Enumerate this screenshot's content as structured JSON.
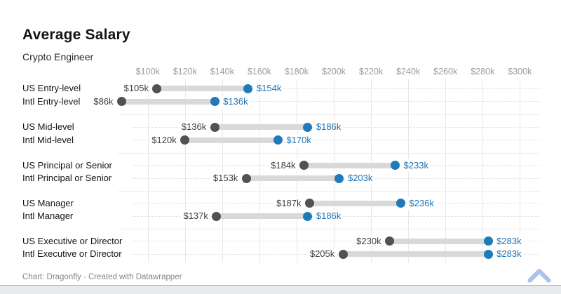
{
  "chart_data": {
    "type": "dumbbell",
    "title": "Average Salary",
    "subtitle": "Crypto Engineer",
    "footer": "Chart: Dragonfly · Created with Datawrapper",
    "x_axis": {
      "ticks": [
        {
          "value": 100,
          "label": "$100k"
        },
        {
          "value": 120,
          "label": "$120k"
        },
        {
          "value": 140,
          "label": "$140k"
        },
        {
          "value": 160,
          "label": "$160k"
        },
        {
          "value": 180,
          "label": "$180k"
        },
        {
          "value": 200,
          "label": "$200k"
        },
        {
          "value": 220,
          "label": "$220k"
        },
        {
          "value": 240,
          "label": "$240k"
        },
        {
          "value": 260,
          "label": "$260k"
        },
        {
          "value": 280,
          "label": "$280k"
        },
        {
          "value": 300,
          "label": "$300k"
        }
      ],
      "range": [
        100,
        300
      ],
      "grid": true
    },
    "rows": [
      {
        "label": "US Entry-level",
        "min": 105,
        "max": 154,
        "min_label": "$105k",
        "max_label": "$154k"
      },
      {
        "label": "Intl Entry-level",
        "min": 86,
        "max": 136,
        "min_label": "$86k",
        "max_label": "$136k"
      },
      {
        "label": "US Mid-level",
        "min": 136,
        "max": 186,
        "min_label": "$136k",
        "max_label": "$186k"
      },
      {
        "label": "Intl Mid-level",
        "min": 120,
        "max": 170,
        "min_label": "$120k",
        "max_label": "$170k"
      },
      {
        "label": "US Principal or Senior",
        "min": 184,
        "max": 233,
        "min_label": "$184k",
        "max_label": "$233k"
      },
      {
        "label": "Intl Principal or Senior",
        "min": 153,
        "max": 203,
        "min_label": "$153k",
        "max_label": "$203k"
      },
      {
        "label": "US Manager",
        "min": 187,
        "max": 236,
        "min_label": "$187k",
        "max_label": "$236k"
      },
      {
        "label": "Intl Manager",
        "min": 137,
        "max": 186,
        "min_label": "$137k",
        "max_label": "$186k"
      },
      {
        "label": "US Executive or Director",
        "min": 230,
        "max": 283,
        "min_label": "$230k",
        "max_label": "$283k"
      },
      {
        "label": "Intl Executive or Director",
        "min": 205,
        "max": 283,
        "min_label": "$205k",
        "max_label": "$283k"
      }
    ],
    "colors": {
      "min_dot": "#525252",
      "max_dot": "#1f7ab8",
      "min_text": "#404040",
      "max_text": "#2273b0",
      "bar": "#d9d9d9",
      "chevron": "#a9c3ea"
    },
    "icons": {
      "chevron": "chevron-up"
    }
  }
}
